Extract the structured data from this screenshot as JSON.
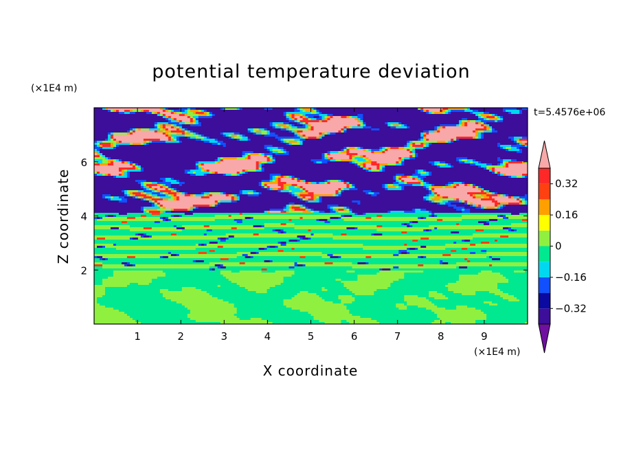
{
  "chart_data": {
    "type": "heatmap",
    "title": "potential temperature deviation",
    "xlabel": "X coordinate",
    "ylabel": "Z coordinate",
    "x_unit": "(×1E4 m)",
    "y_unit": "(×1E4 m)",
    "time_label": "t=5.4576e+06",
    "xlim": [
      0,
      10
    ],
    "ylim": [
      0,
      8
    ],
    "x_ticks": [
      "1",
      "2",
      "3",
      "4",
      "5",
      "6",
      "7",
      "8",
      "9"
    ],
    "y_ticks": [
      "2",
      "4",
      "6"
    ],
    "colorbar": {
      "levels": [
        -0.4,
        -0.32,
        -0.24,
        -0.16,
        -0.08,
        0,
        0.08,
        0.16,
        0.24,
        0.32,
        0.4
      ],
      "tick_labels": [
        "0.32",
        "0.16",
        "0",
        "−0.16",
        "−0.32"
      ],
      "extend": "both",
      "colors": [
        "#7010a0",
        "#3c0e9a",
        "#0a0aa0",
        "#1050ff",
        "#00d8f0",
        "#00e890",
        "#90f040",
        "#ffff00",
        "#ffa000",
        "#ff4010",
        "#ff2828",
        "#f8a8a8"
      ]
    }
  }
}
